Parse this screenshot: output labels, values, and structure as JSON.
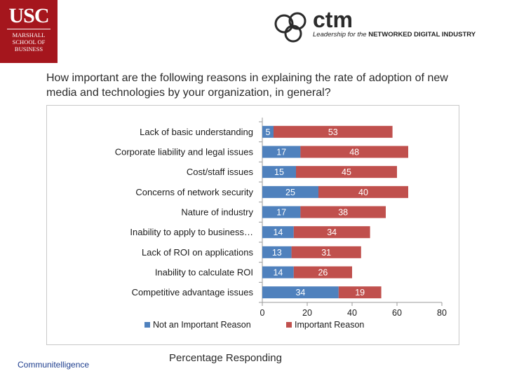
{
  "usc_logo": {
    "mark": "USC",
    "line1": "MARSHALL",
    "line2": "SCHOOL OF",
    "line3": "BUSINESS"
  },
  "ctm_logo": {
    "word": "ctm",
    "tag_italic": "Leadership for the ",
    "tag_bold": "NETWORKED DIGITAL INDUSTRY"
  },
  "question": "How important are the following reasons in explaining the rate of adoption of new media and technologies by your organization, in general?",
  "footer_brand": "Communitelligence",
  "colors": {
    "not_important": "#4f81bd",
    "important": "#c0504d",
    "usc_red": "#a5161d"
  },
  "chart_data": {
    "type": "bar",
    "orientation": "horizontal",
    "stacked": true,
    "categories": [
      "Lack of basic understanding",
      "Corporate liability and legal issues",
      "Cost/staff issues",
      "Concerns of network security",
      "Nature of industry",
      "Inability to apply to business…",
      "Lack of ROI on applications",
      "Inability to calculate ROI",
      "Competitive advantage issues"
    ],
    "series": [
      {
        "name": "Not an Important Reason",
        "values": [
          5,
          17,
          15,
          25,
          17,
          14,
          13,
          14,
          34
        ]
      },
      {
        "name": "Important Reason",
        "values": [
          53,
          48,
          45,
          40,
          38,
          34,
          31,
          26,
          19
        ]
      }
    ],
    "xlabel": "Percentage Responding",
    "xlim": [
      0,
      80
    ],
    "xticks": [
      0,
      20,
      40,
      60,
      80
    ],
    "grid": false,
    "legend_position": "bottom"
  }
}
